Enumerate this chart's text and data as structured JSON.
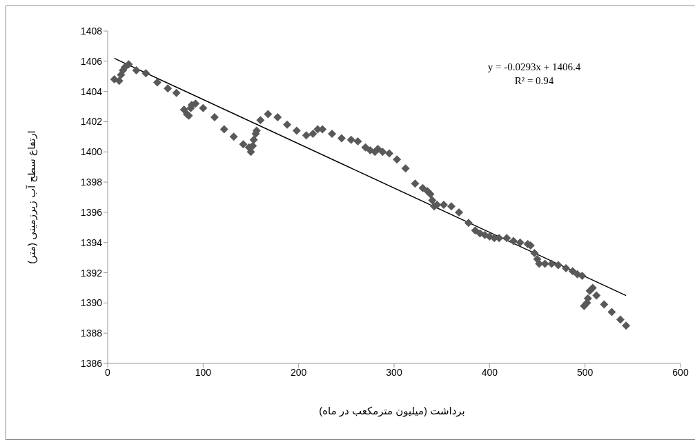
{
  "chart_data": {
    "type": "scatter",
    "xlabel": "برداشت (میلیون مترمکعب در ماه)",
    "ylabel": "ارتفاع سطح آب زیرزمینی (متر)",
    "xlim": [
      0,
      600
    ],
    "xticks": [
      0,
      100,
      200,
      300,
      400,
      500,
      600
    ],
    "ylim": [
      1386,
      1408
    ],
    "yticks": [
      1386,
      1388,
      1390,
      1392,
      1394,
      1396,
      1398,
      1400,
      1402,
      1404,
      1406,
      1408
    ],
    "grid": false,
    "legend": false,
    "marker": "diamond",
    "annotations": [
      "y = -0.0293x + 1406.4",
      "R² = 0.94"
    ],
    "series": [
      {
        "color": "#595959",
        "x": [
          7,
          12,
          14,
          16,
          18,
          22,
          30,
          40,
          52,
          63,
          72,
          80,
          83,
          85,
          87,
          88,
          92,
          100,
          112,
          122,
          132,
          142,
          148,
          150,
          152,
          153,
          155,
          156,
          160,
          168,
          178,
          188,
          198,
          208,
          215,
          220,
          225,
          235,
          245,
          255,
          262,
          270,
          275,
          280,
          283,
          288,
          295,
          303,
          312,
          322,
          330,
          335,
          338,
          340,
          342,
          345,
          352,
          360,
          368,
          378,
          385,
          390,
          395,
          400,
          405,
          410,
          418,
          425,
          432,
          440,
          443,
          447,
          450,
          452,
          458,
          465,
          472,
          480,
          487,
          492,
          497,
          499,
          502,
          503,
          505,
          508,
          512,
          520,
          528,
          537,
          543
        ],
        "values": [
          1404.8,
          1404.7,
          1405.1,
          1405.4,
          1405.6,
          1405.8,
          1405.4,
          1405.2,
          1404.6,
          1404.2,
          1403.9,
          1402.8,
          1402.5,
          1402.4,
          1402.9,
          1403.1,
          1403.2,
          1402.9,
          1402.3,
          1401.5,
          1401.0,
          1400.5,
          1400.3,
          1400.0,
          1400.4,
          1400.8,
          1401.2,
          1401.4,
          1402.1,
          1402.5,
          1402.3,
          1401.8,
          1401.4,
          1401.1,
          1401.2,
          1401.5,
          1401.5,
          1401.2,
          1400.9,
          1400.8,
          1400.7,
          1400.3,
          1400.1,
          1400.0,
          1400.2,
          1400.0,
          1399.9,
          1399.5,
          1398.9,
          1397.9,
          1397.6,
          1397.4,
          1397.2,
          1396.8,
          1396.4,
          1396.5,
          1396.5,
          1396.4,
          1396.0,
          1395.3,
          1394.8,
          1394.6,
          1394.5,
          1394.4,
          1394.3,
          1394.3,
          1394.3,
          1394.1,
          1394.0,
          1393.9,
          1393.8,
          1393.3,
          1392.9,
          1392.6,
          1392.6,
          1392.6,
          1392.5,
          1392.3,
          1392.1,
          1391.9,
          1391.8,
          1389.8,
          1390.0,
          1390.3,
          1390.8,
          1391.0,
          1390.5,
          1389.9,
          1389.4,
          1388.9,
          1388.5
        ]
      },
      {
        "type": "line",
        "color": "#000000",
        "marker": "none",
        "line_style": "solid",
        "x": [
          7,
          543
        ],
        "values": [
          1406.19,
          1390.49
        ]
      }
    ]
  }
}
